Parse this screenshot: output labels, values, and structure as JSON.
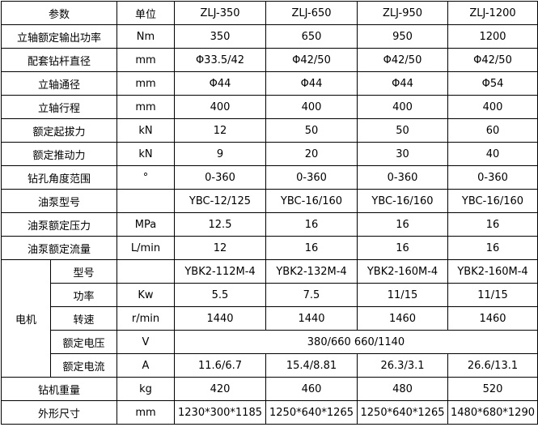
{
  "header": [
    "参数",
    "单位",
    "ZLJ-350",
    "ZLJ-650",
    "ZLJ-950",
    "ZLJ-1200"
  ],
  "rows_top": [
    {
      "param": "立轴额定输出功率",
      "unit": "Nm",
      "values": [
        "350",
        "650",
        "950",
        "1200"
      ]
    },
    {
      "param": "配套钻杆直径",
      "unit": "mm",
      "values": [
        "Φ33.5/42",
        "Φ42/50",
        "Φ42/50",
        "Φ42/50"
      ]
    },
    {
      "param": "立轴通径",
      "unit": "mm",
      "values": [
        "Φ44",
        "Φ44",
        "Φ44",
        "Φ54"
      ]
    },
    {
      "param": "立轴行程",
      "unit": "mm",
      "values": [
        "400",
        "400",
        "400",
        "400"
      ]
    },
    {
      "param": "额定起拔力",
      "unit": "kN",
      "values": [
        "12",
        "50",
        "50",
        "60"
      ]
    },
    {
      "param": "额定推动力",
      "unit": "kN",
      "values": [
        "9",
        "20",
        "30",
        "40"
      ]
    },
    {
      "param": "钻孔角度范围",
      "unit": "°",
      "values": [
        "0-360",
        "0-360",
        "0-360",
        "0-360"
      ]
    },
    {
      "param": "油泵型号",
      "unit": "",
      "values": [
        "YBC-12/125",
        "YBC-16/160",
        "YBC-16/160",
        "YBC-16/160"
      ]
    },
    {
      "param": "油泵额定压力",
      "unit": "MPa",
      "values": [
        "12.5",
        "16",
        "16",
        "16"
      ]
    },
    {
      "param": "油泵额定流量",
      "unit": "L/min",
      "values": [
        "12",
        "16",
        "16",
        "16"
      ]
    }
  ],
  "motor": {
    "label": "电机",
    "rows": [
      {
        "param": "型号",
        "unit": "",
        "values": [
          "YBK2-112M-4",
          "YBK2-132M-4",
          "YBK2-160M-4",
          "YBK2-160M-4"
        ]
      },
      {
        "param": "功率",
        "unit": "Kw",
        "values": [
          "5.5",
          "7.5",
          "11/15",
          "11/15"
        ]
      },
      {
        "param": "转速",
        "unit": "r/min",
        "values": [
          "1440",
          "1440",
          "1460",
          "1460"
        ]
      },
      {
        "param": "额定电压",
        "unit": "V",
        "merged": "380/660  660/1140"
      },
      {
        "param": "额定电流",
        "unit": "A",
        "values": [
          "11.6/6.7",
          "15.4/8.81",
          "26.3/3.1",
          "26.6/13.1"
        ]
      }
    ]
  },
  "rows_bottom": [
    {
      "param": "钻机重量",
      "unit": "kg",
      "values": [
        "420",
        "460",
        "480",
        "520"
      ]
    },
    {
      "param": "外形尺寸",
      "unit": "mm",
      "values": [
        "1230*300*1185",
        "1250*640*1265",
        "1250*640*1265",
        "1480*680*1290"
      ]
    }
  ]
}
